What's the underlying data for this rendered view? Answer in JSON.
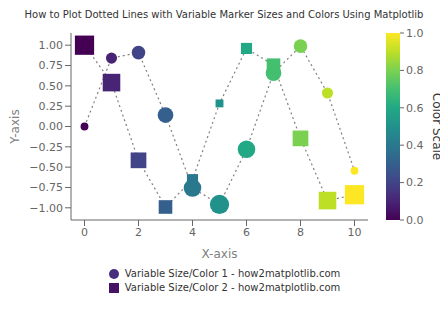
{
  "chart_data": {
    "type": "scatter",
    "title": "How to Plot Dotted Lines with Variable Marker Sizes and Colors Using Matplotlib",
    "x_label": "X-axis",
    "y_label": "Y-axis",
    "x": [
      0,
      1,
      2,
      3,
      4,
      5,
      6,
      7,
      8,
      9,
      10
    ],
    "series": [
      {
        "name": "Variable Size/Color 1 - how2matplotlib.com",
        "marker": "circle",
        "line_style": "dotted",
        "color": "#472f7d",
        "values": [
          0.0,
          0.841,
          0.909,
          0.141,
          -0.757,
          -0.959,
          -0.279,
          0.657,
          0.989,
          0.412,
          -0.544
        ],
        "color_values": [
          0.0,
          0.1,
          0.2,
          0.3,
          0.4,
          0.5,
          0.6,
          0.7,
          0.8,
          0.9,
          1.0
        ],
        "sizes": [
          50,
          100,
          150,
          200,
          250,
          300,
          250,
          200,
          150,
          100,
          50
        ]
      },
      {
        "name": "Variable Size/Color 2 - how2matplotlib.com",
        "marker": "square",
        "line_style": "dotted",
        "color": "#471365",
        "values": [
          1.0,
          0.54,
          -0.416,
          -0.99,
          -0.654,
          0.284,
          0.96,
          0.754,
          -0.146,
          -0.911,
          -0.839
        ],
        "color_values": [
          0.0,
          0.1,
          0.2,
          0.3,
          0.4,
          0.5,
          0.6,
          0.7,
          0.8,
          0.9,
          1.0
        ],
        "sizes": [
          300,
          250,
          200,
          150,
          100,
          50,
          100,
          150,
          200,
          250,
          300
        ]
      }
    ],
    "xlim": [
      -0.5,
      10.5
    ],
    "ylim": [
      -1.15,
      1.15
    ],
    "xticks": [
      0,
      2,
      4,
      6,
      8,
      10
    ],
    "yticks": [
      {
        "value": -1.0,
        "label": "−1.00"
      },
      {
        "value": -0.75,
        "label": "−0.75"
      },
      {
        "value": -0.5,
        "label": "−0.50"
      },
      {
        "value": -0.25,
        "label": "−0.25"
      },
      {
        "value": 0.0,
        "label": "0.00"
      },
      {
        "value": 0.25,
        "label": "0.25"
      },
      {
        "value": 0.5,
        "label": "0.50"
      },
      {
        "value": 0.75,
        "label": "0.75"
      },
      {
        "value": 1.0,
        "label": "1.00"
      }
    ],
    "colorbar_label": "Color Scale",
    "colorbar_lim": [
      0,
      1
    ],
    "colorbar_ticks": [
      {
        "value": 0.0,
        "label": "0.0"
      },
      {
        "value": 0.2,
        "label": "0.2"
      },
      {
        "value": 0.4,
        "label": "0.4"
      },
      {
        "value": 0.6,
        "label": "0.6"
      },
      {
        "value": 0.8,
        "label": "0.8"
      },
      {
        "value": 1.0,
        "label": "1.0"
      }
    ],
    "grid": false,
    "legend": "bottom"
  }
}
